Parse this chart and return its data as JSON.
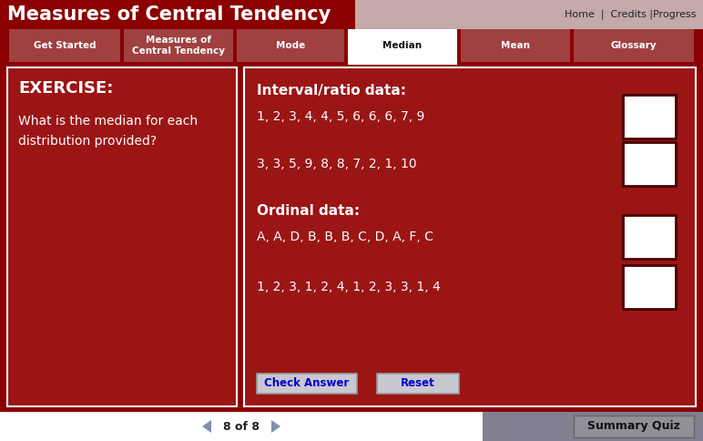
{
  "title": "Measures of Central Tendency",
  "nav_items": [
    "Get Started",
    "Measures of\nCentral Tendency",
    "Mode",
    "Median",
    "Mean",
    "Glossary"
  ],
  "active_nav": "Median",
  "top_links": "Home  |  Credits |Progress",
  "exercise_label": "EXERCISE:",
  "exercise_text": "What is the median for each\ndistribution provided?",
  "section1_title": "Interval/ratio data:",
  "data_rows": [
    "1, 2, 3, 4, 4, 5, 6, 6, 6, 7, 9",
    "3, 3, 5, 9, 8, 8, 7, 2, 1, 10"
  ],
  "section2_title": "Ordinal data:",
  "data_rows2": [
    "A, A, D, B, B, B, C, D, A, F, C",
    "1, 2, 3, 1, 2, 4, 1, 2, 3, 3, 1, 4"
  ],
  "btn1": "Check Answer",
  "btn2": "Reset",
  "footer_text": "8 of 8",
  "footer_btn": "Summary Quiz",
  "col_dark_red": "#8B0000",
  "col_medium_red": "#9B1515",
  "col_nav_tab": "#A04040",
  "col_top_right_bg": "#C4AAAA",
  "col_white": "#FFFFFF",
  "col_footer_gray": "#808090",
  "col_btn_bg": "#C8C8D0",
  "col_btn_border": "#999999",
  "col_blue_text": "#0000CC",
  "col_arrow": "#8090B0",
  "col_summary_bg": "#909098",
  "col_panel_border": "#FFFFFF",
  "col_ans_border": "#4A0000"
}
